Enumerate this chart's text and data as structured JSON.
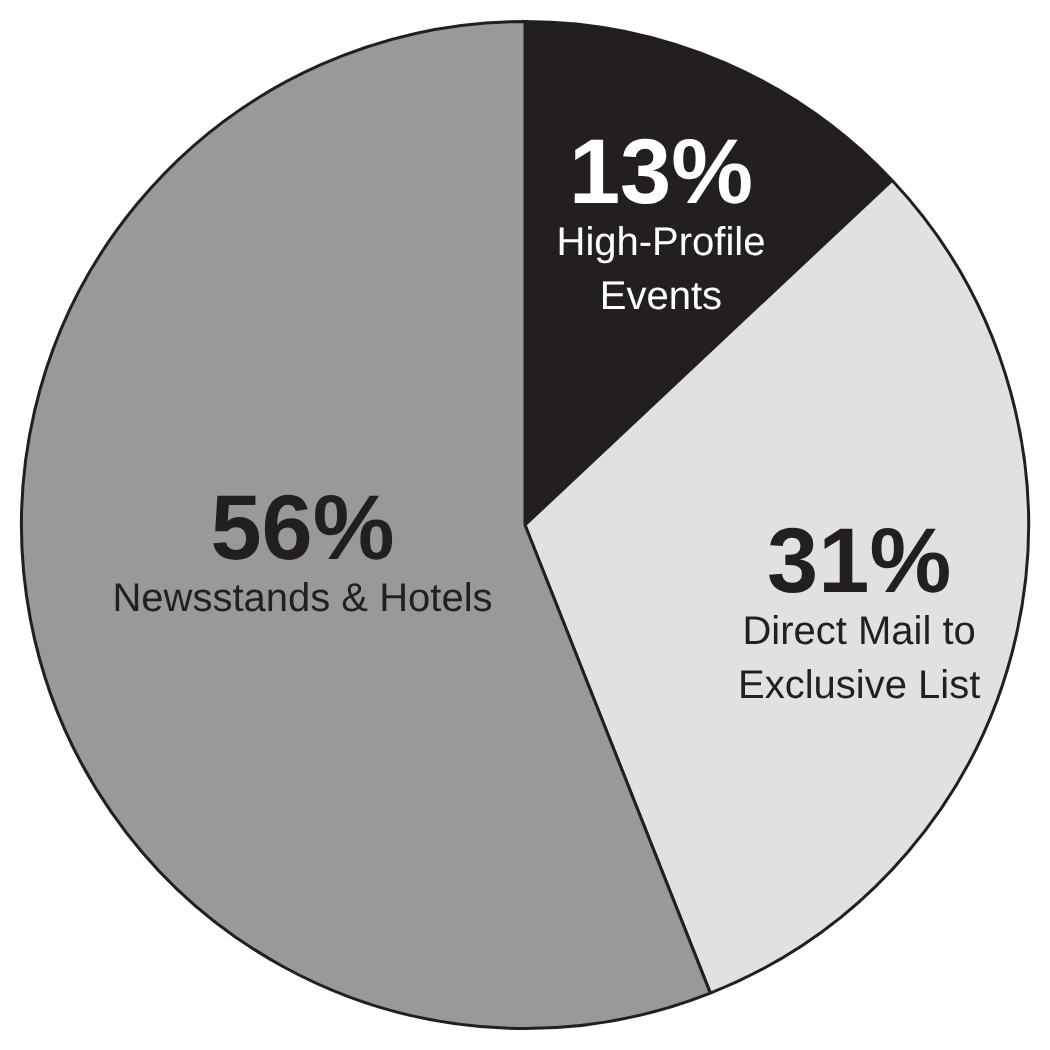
{
  "chart_data": {
    "type": "pie",
    "categories": [
      "High-Profile Events",
      "Direct Mail to Exclusive List",
      "Newsstands & Hotels"
    ],
    "values": [
      13,
      31,
      56
    ],
    "value_labels": [
      "13%",
      "31%",
      "56%"
    ],
    "colors": [
      "#231f20",
      "#e1e1e1",
      "#999999"
    ],
    "legend": false
  }
}
